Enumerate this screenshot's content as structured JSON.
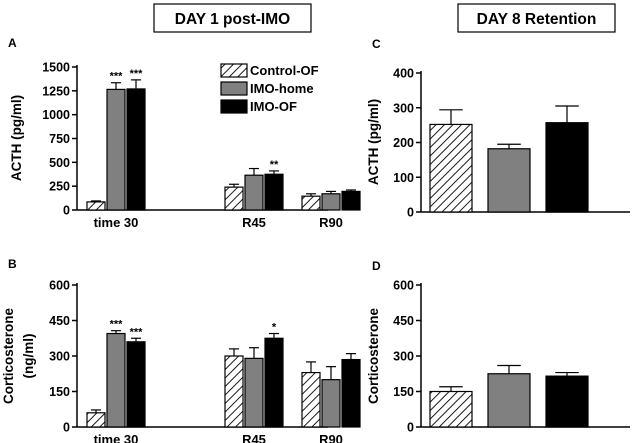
{
  "headers": {
    "left": "DAY 1 post-IMO",
    "right": "DAY 8 Retention"
  },
  "colors": {
    "control": "hatch",
    "home": "#808080",
    "of": "#000000"
  },
  "legend": [
    "Control-OF",
    "IMO-home",
    "IMO-OF"
  ],
  "chart_data": [
    {
      "id": "A",
      "type": "bar",
      "letter": "A",
      "ylabel": "ACTH (pg/ml)",
      "ylabel2": "",
      "ylim": [
        0,
        1500
      ],
      "yticks": [
        0,
        250,
        500,
        750,
        1000,
        1250,
        1500
      ],
      "categories": [
        "time 30",
        "R45",
        "R90"
      ],
      "series": [
        {
          "name": "Control-OF",
          "values": [
            85,
            240,
            145
          ],
          "errors": [
            10,
            30,
            25
          ]
        },
        {
          "name": "IMO-home",
          "values": [
            1265,
            365,
            170
          ],
          "errors": [
            70,
            70,
            25
          ]
        },
        {
          "name": "IMO-OF",
          "values": [
            1270,
            375,
            195
          ],
          "errors": [
            95,
            35,
            15
          ]
        }
      ],
      "annotations": [
        {
          "category": 0,
          "series": 1,
          "text": "***"
        },
        {
          "category": 0,
          "series": 2,
          "text": "***"
        },
        {
          "category": 1,
          "series": 2,
          "text": "**"
        }
      ]
    },
    {
      "id": "B",
      "type": "bar",
      "letter": "B",
      "ylabel": "Corticosterone",
      "ylabel2": "(ng/ml)",
      "ylim": [
        0,
        600
      ],
      "yticks": [
        0,
        150,
        300,
        450,
        600
      ],
      "categories": [
        "time 30",
        "R45",
        "R90"
      ],
      "series": [
        {
          "name": "Control-OF",
          "values": [
            60,
            300,
            230
          ],
          "errors": [
            12,
            30,
            45
          ]
        },
        {
          "name": "IMO-home",
          "values": [
            395,
            290,
            200
          ],
          "errors": [
            12,
            45,
            55
          ]
        },
        {
          "name": "IMO-OF",
          "values": [
            360,
            375,
            285
          ],
          "errors": [
            15,
            20,
            25
          ]
        }
      ],
      "annotations": [
        {
          "category": 0,
          "series": 1,
          "text": "***"
        },
        {
          "category": 0,
          "series": 2,
          "text": "***"
        },
        {
          "category": 1,
          "series": 2,
          "text": "*"
        }
      ]
    },
    {
      "id": "C",
      "type": "bar",
      "letter": "C",
      "ylabel": "ACTH (pg/ml)",
      "ylabel2": "",
      "ylim": [
        0,
        400
      ],
      "yticks": [
        0,
        100,
        200,
        300,
        400
      ],
      "categories": [
        ""
      ],
      "series": [
        {
          "name": "Control-OF",
          "values": [
            252
          ],
          "errors": [
            42
          ]
        },
        {
          "name": "IMO-home",
          "values": [
            182
          ],
          "errors": [
            13
          ]
        },
        {
          "name": "IMO-OF",
          "values": [
            257
          ],
          "errors": [
            48
          ]
        }
      ],
      "annotations": []
    },
    {
      "id": "D",
      "type": "bar",
      "letter": "D",
      "ylabel": "Corticosterone",
      "ylabel2": "",
      "ylim": [
        0,
        600
      ],
      "yticks": [
        0,
        150,
        300,
        450,
        600
      ],
      "categories": [
        ""
      ],
      "series": [
        {
          "name": "Control-OF",
          "values": [
            150
          ],
          "errors": [
            20
          ]
        },
        {
          "name": "IMO-home",
          "values": [
            225
          ],
          "errors": [
            35
          ]
        },
        {
          "name": "IMO-OF",
          "values": [
            215
          ],
          "errors": [
            15
          ]
        }
      ],
      "annotations": []
    }
  ]
}
